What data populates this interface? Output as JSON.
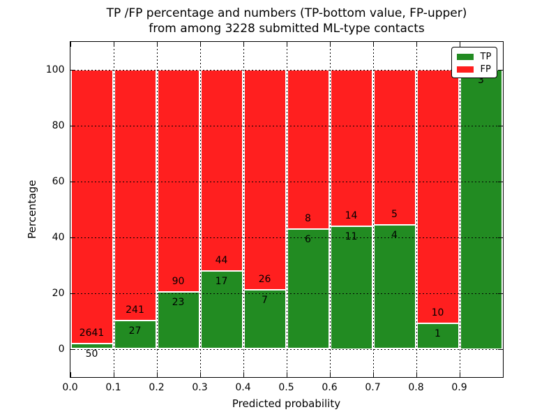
{
  "chart_data": {
    "type": "bar",
    "stacked": true,
    "title_line1": "TP /FP percentage and numbers (TP-bottom value, FP-upper)",
    "title_line2": "from among 3228 submitted ML-type contacts",
    "xlabel": "Predicted probability",
    "ylabel": "Percentage",
    "total_contacts": 3228,
    "xlim": [
      0.0,
      1.0
    ],
    "ylim": [
      -10,
      110
    ],
    "xticks": [
      "0.0",
      "0.1",
      "0.2",
      "0.3",
      "0.4",
      "0.5",
      "0.6",
      "0.7",
      "0.8",
      "0.9"
    ],
    "yticks": [
      0,
      20,
      40,
      60,
      80,
      100
    ],
    "grid": true,
    "grid_style": "dotted",
    "legend_position": "upper right",
    "legend": [
      {
        "label": "TP",
        "color": "#228b22"
      },
      {
        "label": "FP",
        "color": "#ff1f1f"
      }
    ],
    "colors": {
      "tp": "#228b22",
      "fp": "#ff1f1f",
      "bar_edge": "#ffffff"
    },
    "bins": [
      {
        "x_range": [
          0.0,
          0.1
        ],
        "tp": 50,
        "fp": 2641
      },
      {
        "x_range": [
          0.1,
          0.2
        ],
        "tp": 27,
        "fp": 241
      },
      {
        "x_range": [
          0.2,
          0.3
        ],
        "tp": 23,
        "fp": 90
      },
      {
        "x_range": [
          0.3,
          0.4
        ],
        "tp": 17,
        "fp": 44
      },
      {
        "x_range": [
          0.4,
          0.5
        ],
        "tp": 7,
        "fp": 26
      },
      {
        "x_range": [
          0.5,
          0.6
        ],
        "tp": 6,
        "fp": 8
      },
      {
        "x_range": [
          0.6,
          0.7
        ],
        "tp": 11,
        "fp": 14
      },
      {
        "x_range": [
          0.7,
          0.8
        ],
        "tp": 4,
        "fp": 5
      },
      {
        "x_range": [
          0.8,
          0.9
        ],
        "tp": 1,
        "fp": 10
      },
      {
        "x_range": [
          0.9,
          1.0
        ],
        "tp": 3,
        "fp": 0
      }
    ]
  }
}
